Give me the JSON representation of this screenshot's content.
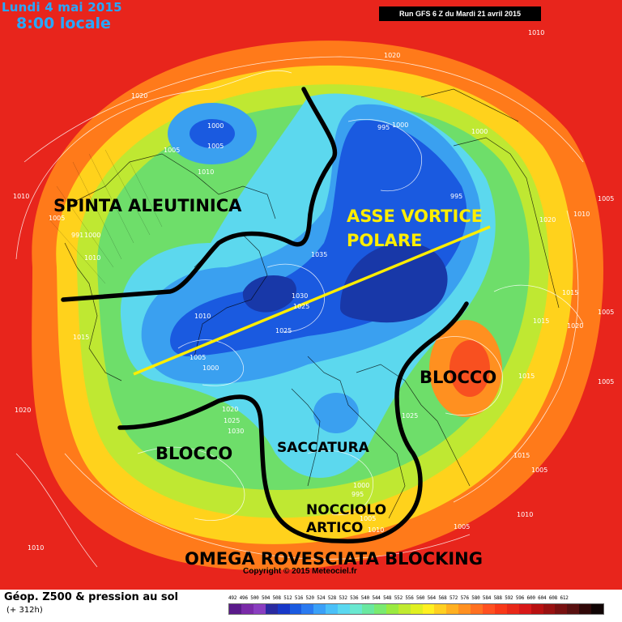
{
  "header": {
    "date": "Lundi 4 mai 2015",
    "time": "8:00 locale",
    "run": "Run GFS 6 Z du Mardi 21 avril 2015"
  },
  "footer": {
    "title": "Géop. Z500 & pression au sol",
    "forecast": "(+ 312h)",
    "copyright": "Copyright © 2015 Meteociel.fr",
    "scale": "492 496 500 504 508 512 516 520 524 528 532 536 540 544 548 552 556 560 564 568 572 576 580 584 588 592 596 600 604 608 612",
    "scale_colors": [
      "#5a1a8a",
      "#7a2aa8",
      "#8a3ec0",
      "#2a2aa0",
      "#1838c8",
      "#1a5ae0",
      "#2a7af0",
      "#3aa0f8",
      "#4ac0f8",
      "#5ad8f0",
      "#6ae8d0",
      "#6ae8a0",
      "#7aea70",
      "#9aea40",
      "#c0ea30",
      "#e0f020",
      "#fff020",
      "#ffd020",
      "#ffb020",
      "#ff9020",
      "#ff7020",
      "#ff5020",
      "#f83818",
      "#e82818",
      "#d81818",
      "#b81010",
      "#981010",
      "#781010",
      "#581010",
      "#300808",
      "#100404"
    ]
  },
  "annotations": {
    "spinta": "SPINTA ALEUTINICA",
    "asse": "ASSE VORTICE POLARE",
    "blocco_right": "BLOCCO",
    "blocco_left": "BLOCCO",
    "saccatura": "SACCATURA",
    "nocciolo": "NOCCIOLO ARTICO",
    "omega": "OMEGA ROVESCIATA BLOCKING"
  },
  "isobars": [
    "1020",
    "1010",
    "1020",
    "1000",
    "1005",
    "1005",
    "1010",
    "991",
    "1000",
    "1000",
    "995",
    "1000",
    "995",
    "1005",
    "1020",
    "1010",
    "1005",
    "1035",
    "1030",
    "1025",
    "1025",
    "1010",
    "1005",
    "1000",
    "1020",
    "1025",
    "1030",
    "1025",
    "1015",
    "1000",
    "995",
    "1005",
    "1010",
    "1020",
    "1015",
    "1005",
    "1015",
    "1020",
    "1005",
    "1015",
    "1005",
    "1010",
    "1010",
    "1005",
    "1010",
    "1010",
    "1015"
  ]
}
